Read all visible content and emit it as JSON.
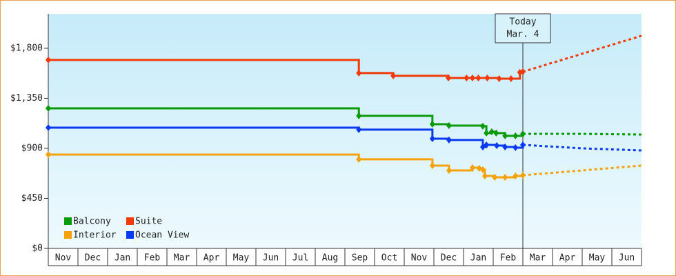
{
  "chart_data": {
    "type": "step-line",
    "categories": [
      "Nov",
      "Dec",
      "Jan",
      "Feb",
      "Mar",
      "Apr",
      "May",
      "Jun",
      "Jul",
      "Aug",
      "Sep",
      "Oct",
      "Nov",
      "Dec",
      "Jan",
      "Feb",
      "Mar",
      "Apr",
      "May",
      "Jun"
    ],
    "xlim": [
      0,
      20
    ],
    "ylim": [
      0,
      2110
    ],
    "yticks": [
      {
        "value": 0,
        "label": "$0"
      },
      {
        "value": 450,
        "label": "$450"
      },
      {
        "value": 900,
        "label": "$900"
      },
      {
        "value": 1350,
        "label": "$1,350"
      },
      {
        "value": 1800,
        "label": "$1,800"
      }
    ],
    "annotation": {
      "x": 16.0,
      "lines": [
        "Today",
        "Mar. 4"
      ]
    },
    "legend": "bottom-left",
    "series": [
      {
        "name": "Balcony",
        "color": "#0a9a0a",
        "x": [
          0,
          10.47,
          12.95,
          13.51,
          14.65,
          14.77,
          14.95,
          15.1,
          15.4,
          15.75,
          16.0
        ],
        "values": [
          1260,
          1192,
          1117,
          1105,
          1099,
          1037,
          1049,
          1037,
          1012,
          1012,
          1030
        ],
        "forecast_x": [
          16.0,
          18,
          20
        ],
        "forecast_values": [
          1030,
          1030,
          1024
        ]
      },
      {
        "name": "Suite",
        "color": "#f03a0a",
        "x": [
          0,
          10.47,
          11.63,
          13.49,
          14.1,
          14.3,
          14.5,
          14.8,
          15.2,
          15.6,
          15.9,
          16.0
        ],
        "values": [
          1695,
          1577,
          1552,
          1533,
          1533,
          1533,
          1533,
          1533,
          1527,
          1527,
          1583,
          1589
        ],
        "forecast_x": [
          16.0,
          20
        ],
        "forecast_values": [
          1589,
          1912
        ]
      },
      {
        "name": "Interior",
        "color": "#f5a20a",
        "x": [
          0,
          10.47,
          12.95,
          13.51,
          14.3,
          14.53,
          14.65,
          14.72,
          15.05,
          15.4,
          15.75,
          16.0
        ],
        "values": [
          844,
          801,
          745,
          701,
          726,
          720,
          708,
          652,
          639,
          639,
          652,
          658
        ],
        "forecast_x": [
          16.0,
          20
        ],
        "forecast_values": [
          658,
          745
        ]
      },
      {
        "name": "Ocean View",
        "color": "#0a3af0",
        "x": [
          0,
          10.47,
          12.95,
          13.51,
          14.65,
          14.77,
          15.12,
          15.4,
          15.75,
          16.0
        ],
        "values": [
          1086,
          1068,
          987,
          975,
          912,
          931,
          925,
          912,
          906,
          931
        ],
        "forecast_x": [
          16.0,
          18,
          20
        ],
        "forecast_values": [
          931,
          900,
          881
        ]
      }
    ]
  }
}
